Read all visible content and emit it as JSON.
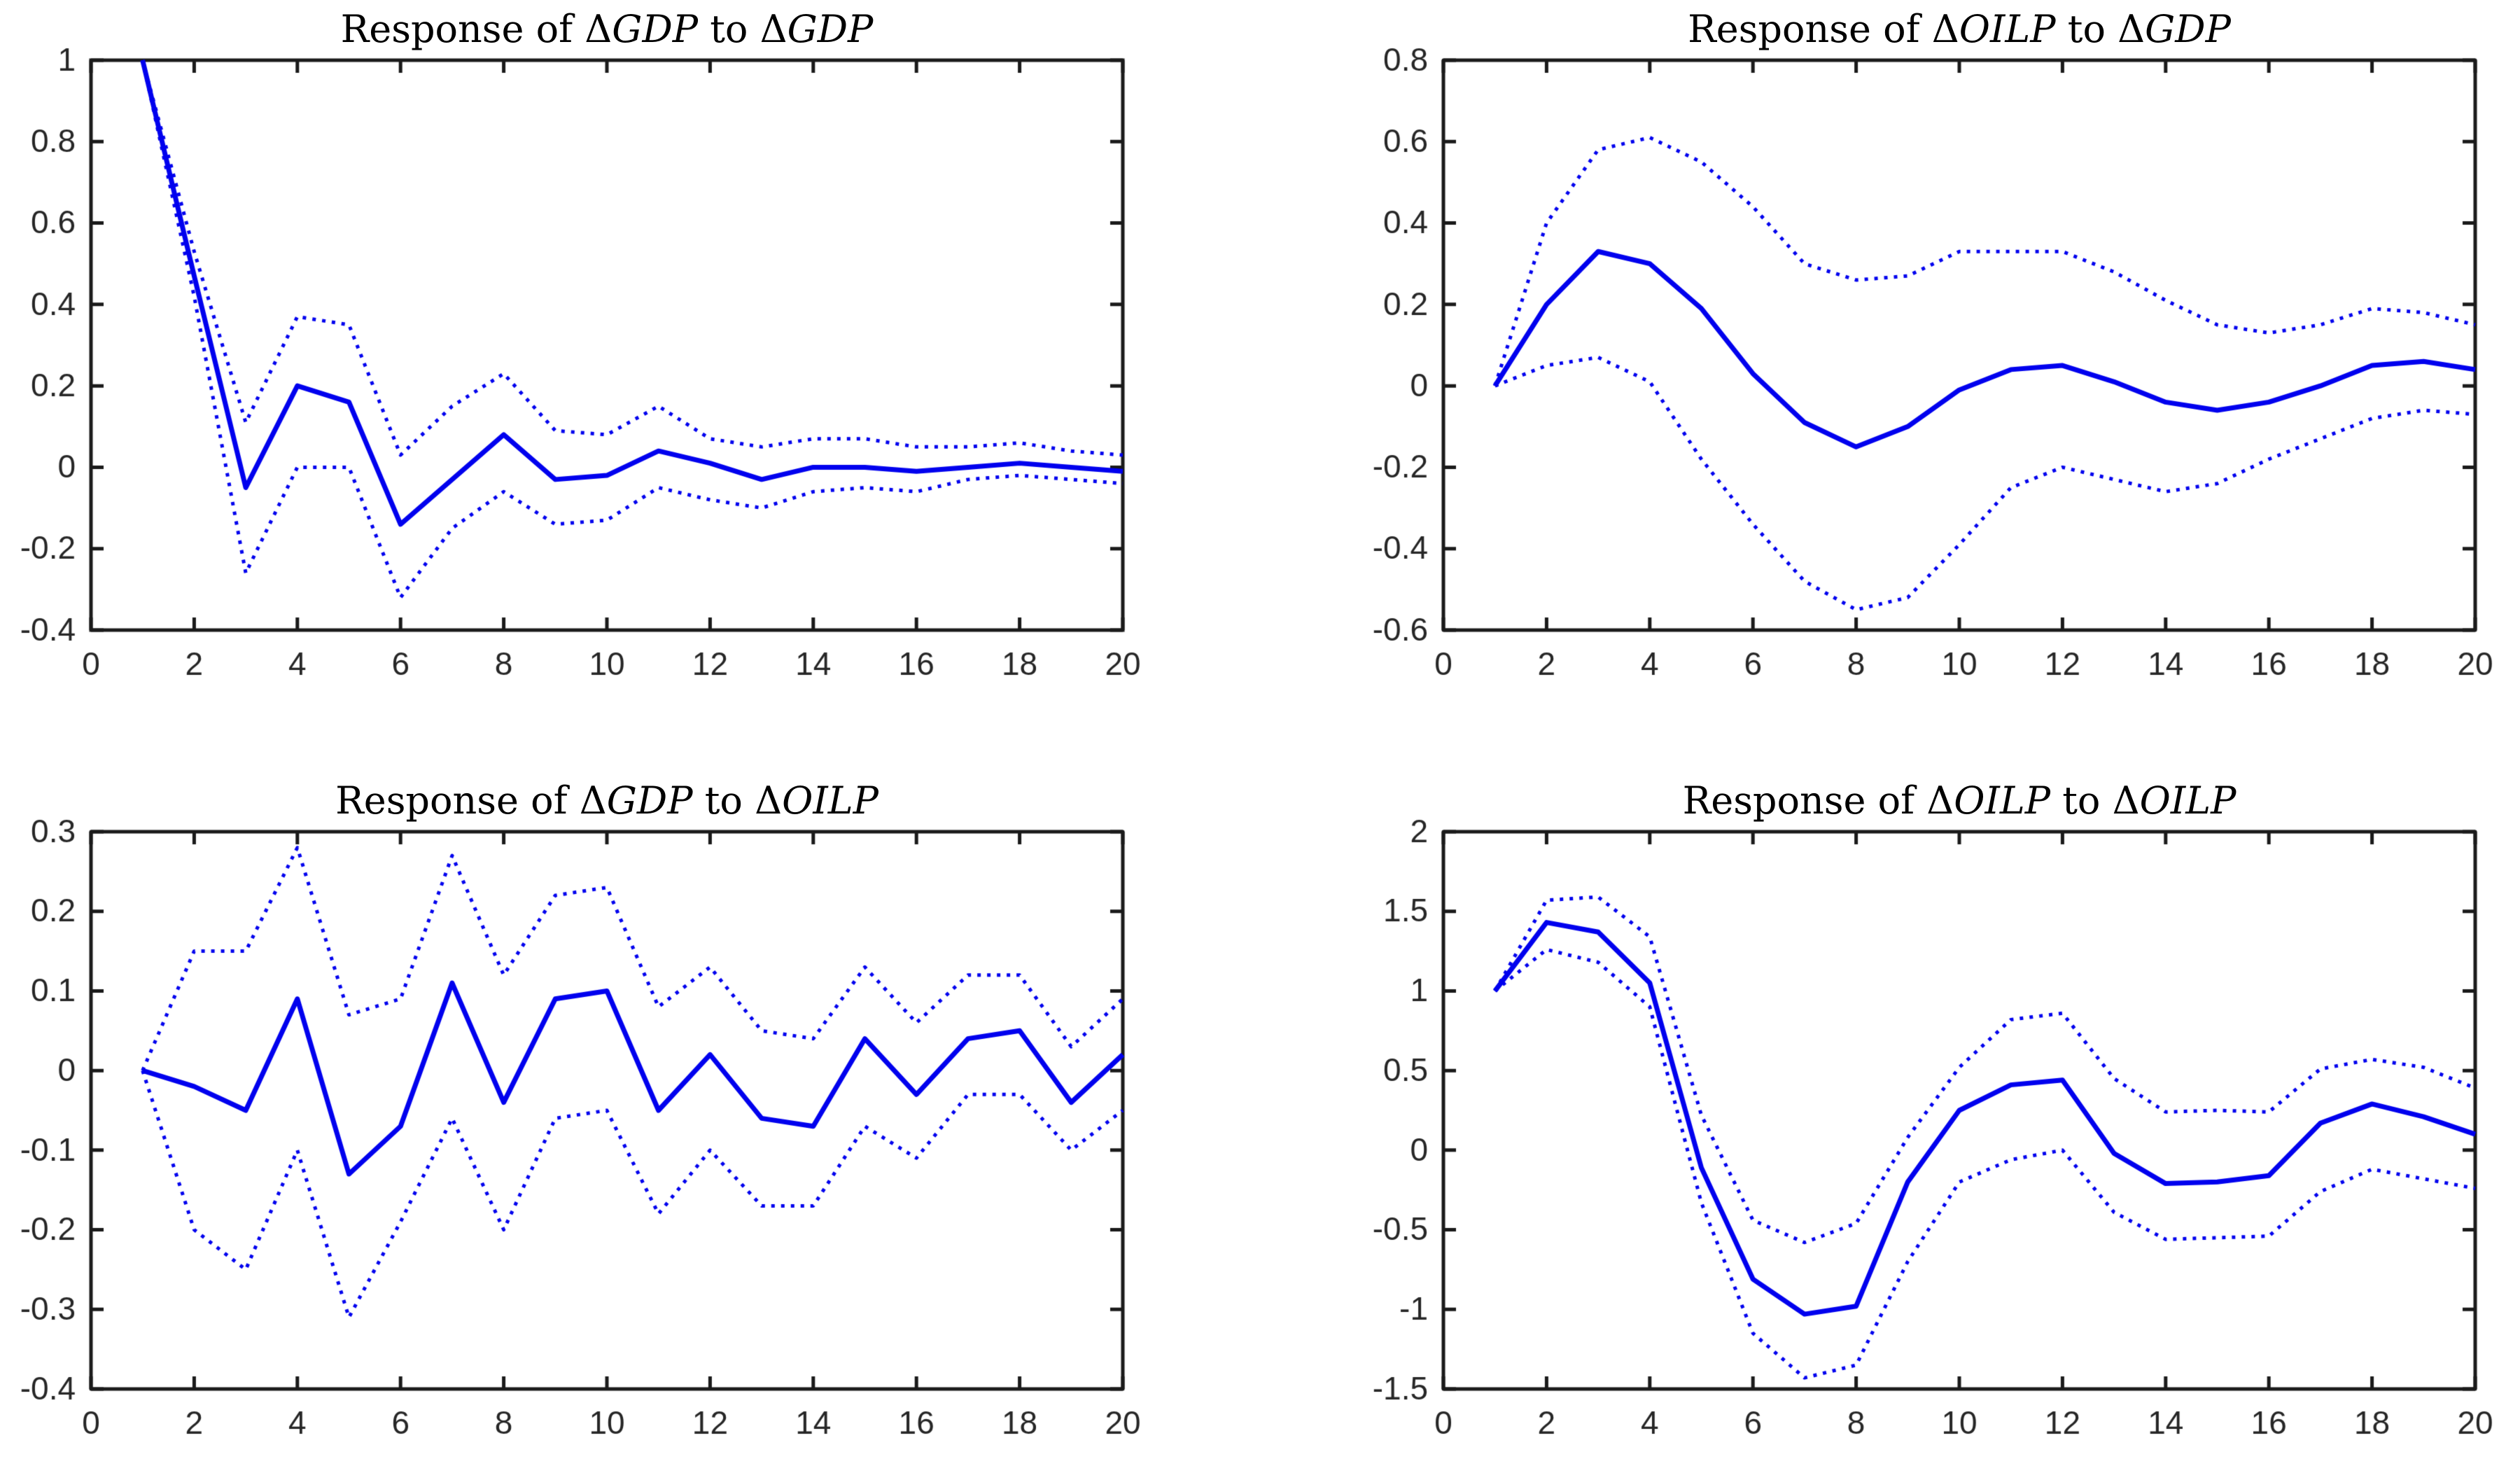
{
  "figure": {
    "background": "#ffffff",
    "line_color": "#0000ee",
    "axis_color": "#1a1a1a",
    "tick_label_color": "#262626",
    "title_color": "#000000"
  },
  "chart_data": [
    {
      "id": "response-gdp-to-gdp",
      "type": "line",
      "title": "Response of ΔGDP to ΔGDP",
      "title_segments": [
        {
          "text": "Response of ",
          "italic": false
        },
        {
          "text": "Δ",
          "italic": false
        },
        {
          "text": "GDP",
          "italic": true
        },
        {
          "text": " to ",
          "italic": false
        },
        {
          "text": "Δ",
          "italic": false
        },
        {
          "text": "GDP",
          "italic": true
        }
      ],
      "xlabel": "",
      "ylabel": "",
      "grid": false,
      "legend": null,
      "xlim": [
        0,
        20
      ],
      "ylim": [
        -0.4,
        1
      ],
      "xticks": [
        0,
        2,
        4,
        6,
        8,
        10,
        12,
        14,
        16,
        18,
        20
      ],
      "xtick_labels": [
        "0",
        "2",
        "4",
        "6",
        "8",
        "10",
        "12",
        "14",
        "16",
        "18",
        "20"
      ],
      "yticks": [
        -0.4,
        -0.2,
        0,
        0.2,
        0.4,
        0.6,
        0.8,
        1
      ],
      "ytick_labels": [
        "-0.4",
        "-0.2",
        "0",
        "0.2",
        "0.4",
        "0.6",
        "0.8",
        "1"
      ],
      "x": [
        1,
        2,
        3,
        4,
        5,
        6,
        7,
        8,
        9,
        10,
        11,
        12,
        13,
        14,
        15,
        16,
        17,
        18,
        19,
        20
      ],
      "series": [
        {
          "name": "irf",
          "style": "solid",
          "values": [
            1.0,
            0.47,
            -0.05,
            0.2,
            0.16,
            -0.14,
            -0.03,
            0.08,
            -0.03,
            -0.02,
            0.04,
            0.01,
            -0.03,
            0.0,
            0.0,
            -0.01,
            0.0,
            0.01,
            0.0,
            -0.01
          ]
        },
        {
          "name": "upper-confidence-band",
          "style": "dotted",
          "values": [
            1.0,
            0.53,
            0.11,
            0.37,
            0.35,
            0.03,
            0.15,
            0.23,
            0.09,
            0.08,
            0.15,
            0.07,
            0.05,
            0.07,
            0.07,
            0.05,
            0.05,
            0.06,
            0.04,
            0.03
          ]
        },
        {
          "name": "lower-confidence-band",
          "style": "dotted",
          "values": [
            1.0,
            0.42,
            -0.26,
            0.0,
            0.0,
            -0.32,
            -0.15,
            -0.06,
            -0.14,
            -0.13,
            -0.05,
            -0.08,
            -0.1,
            -0.06,
            -0.05,
            -0.06,
            -0.03,
            -0.02,
            -0.03,
            -0.04
          ]
        }
      ]
    },
    {
      "id": "response-oilp-to-gdp",
      "type": "line",
      "title": "Response of ΔOILP to ΔGDP",
      "title_segments": [
        {
          "text": "Response of ",
          "italic": false
        },
        {
          "text": "Δ",
          "italic": false
        },
        {
          "text": "OILP",
          "italic": true
        },
        {
          "text": " to ",
          "italic": false
        },
        {
          "text": "Δ",
          "italic": false
        },
        {
          "text": "GDP",
          "italic": true
        }
      ],
      "xlabel": "",
      "ylabel": "",
      "grid": false,
      "legend": null,
      "xlim": [
        0,
        20
      ],
      "ylim": [
        -0.6,
        0.8
      ],
      "xticks": [
        0,
        2,
        4,
        6,
        8,
        10,
        12,
        14,
        16,
        18,
        20
      ],
      "xtick_labels": [
        "0",
        "2",
        "4",
        "6",
        "8",
        "10",
        "12",
        "14",
        "16",
        "18",
        "20"
      ],
      "yticks": [
        -0.6,
        -0.4,
        -0.2,
        0,
        0.2,
        0.4,
        0.6,
        0.8
      ],
      "ytick_labels": [
        "-0.6",
        "-0.4",
        "-0.2",
        "0",
        "0.2",
        "0.4",
        "0.6",
        "0.8"
      ],
      "x": [
        1,
        2,
        3,
        4,
        5,
        6,
        7,
        8,
        9,
        10,
        11,
        12,
        13,
        14,
        15,
        16,
        17,
        18,
        19,
        20
      ],
      "series": [
        {
          "name": "irf",
          "style": "solid",
          "values": [
            0.0,
            0.2,
            0.33,
            0.3,
            0.19,
            0.03,
            -0.09,
            -0.15,
            -0.1,
            -0.01,
            0.04,
            0.05,
            0.01,
            -0.04,
            -0.06,
            -0.04,
            0.0,
            0.05,
            0.06,
            0.04
          ]
        },
        {
          "name": "upper-confidence-band",
          "style": "dotted",
          "values": [
            0.0,
            0.4,
            0.58,
            0.61,
            0.55,
            0.44,
            0.3,
            0.26,
            0.27,
            0.33,
            0.33,
            0.33,
            0.28,
            0.21,
            0.15,
            0.13,
            0.15,
            0.19,
            0.18,
            0.15
          ]
        },
        {
          "name": "lower-confidence-band",
          "style": "dotted",
          "values": [
            0.0,
            0.05,
            0.07,
            0.01,
            -0.18,
            -0.34,
            -0.48,
            -0.55,
            -0.52,
            -0.39,
            -0.25,
            -0.2,
            -0.23,
            -0.26,
            -0.24,
            -0.18,
            -0.13,
            -0.08,
            -0.06,
            -0.07
          ]
        }
      ]
    },
    {
      "id": "response-gdp-to-oilp",
      "type": "line",
      "title": "Response of ΔGDP to ΔOILP",
      "title_segments": [
        {
          "text": "Response of ",
          "italic": false
        },
        {
          "text": "Δ",
          "italic": false
        },
        {
          "text": "GDP",
          "italic": true
        },
        {
          "text": " to ",
          "italic": false
        },
        {
          "text": "Δ",
          "italic": false
        },
        {
          "text": "OILP",
          "italic": true
        }
      ],
      "xlabel": "",
      "ylabel": "",
      "grid": false,
      "legend": null,
      "xlim": [
        0,
        20
      ],
      "ylim": [
        -0.4,
        0.3
      ],
      "xticks": [
        0,
        2,
        4,
        6,
        8,
        10,
        12,
        14,
        16,
        18,
        20
      ],
      "xtick_labels": [
        "0",
        "2",
        "4",
        "6",
        "8",
        "10",
        "12",
        "14",
        "16",
        "18",
        "20"
      ],
      "yticks": [
        -0.4,
        -0.3,
        -0.2,
        -0.1,
        0,
        0.1,
        0.2,
        0.3
      ],
      "ytick_labels": [
        "-0.4",
        "-0.3",
        "-0.2",
        "-0.1",
        "0",
        "0.1",
        "0.2",
        "0.3"
      ],
      "x": [
        1,
        2,
        3,
        4,
        5,
        6,
        7,
        8,
        9,
        10,
        11,
        12,
        13,
        14,
        15,
        16,
        17,
        18,
        19,
        20
      ],
      "series": [
        {
          "name": "irf",
          "style": "solid",
          "values": [
            0.0,
            -0.02,
            -0.05,
            0.09,
            -0.13,
            -0.07,
            0.11,
            -0.04,
            0.09,
            0.1,
            -0.05,
            0.02,
            -0.06,
            -0.07,
            0.04,
            -0.03,
            0.04,
            0.05,
            -0.04,
            0.02
          ]
        },
        {
          "name": "upper-confidence-band",
          "style": "dotted",
          "values": [
            0.0,
            0.15,
            0.15,
            0.28,
            0.07,
            0.09,
            0.27,
            0.12,
            0.22,
            0.23,
            0.08,
            0.13,
            0.05,
            0.04,
            0.13,
            0.06,
            0.12,
            0.12,
            0.03,
            0.09
          ]
        },
        {
          "name": "lower-confidence-band",
          "style": "dotted",
          "values": [
            0.0,
            -0.2,
            -0.25,
            -0.1,
            -0.31,
            -0.19,
            -0.06,
            -0.2,
            -0.06,
            -0.05,
            -0.18,
            -0.1,
            -0.17,
            -0.17,
            -0.07,
            -0.11,
            -0.03,
            -0.03,
            -0.1,
            -0.05
          ]
        }
      ]
    },
    {
      "id": "response-oilp-to-oilp",
      "type": "line",
      "title": "Response of ΔOILP to ΔOILP",
      "title_segments": [
        {
          "text": "Response of ",
          "italic": false
        },
        {
          "text": "Δ",
          "italic": false
        },
        {
          "text": "OILP",
          "italic": true
        },
        {
          "text": " to ",
          "italic": false
        },
        {
          "text": "Δ",
          "italic": false
        },
        {
          "text": "OILP",
          "italic": true
        }
      ],
      "xlabel": "",
      "ylabel": "",
      "grid": false,
      "legend": null,
      "xlim": [
        0,
        20
      ],
      "ylim": [
        -1.5,
        2
      ],
      "xticks": [
        0,
        2,
        4,
        6,
        8,
        10,
        12,
        14,
        16,
        18,
        20
      ],
      "xtick_labels": [
        "0",
        "2",
        "4",
        "6",
        "8",
        "10",
        "12",
        "14",
        "16",
        "18",
        "20"
      ],
      "yticks": [
        -1.5,
        -1,
        -0.5,
        0,
        0.5,
        1,
        1.5,
        2
      ],
      "ytick_labels": [
        "-1.5",
        "-1",
        "-0.5",
        "0",
        "0.5",
        "1",
        "1.5",
        "2"
      ],
      "x": [
        1,
        2,
        3,
        4,
        5,
        6,
        7,
        8,
        9,
        10,
        11,
        12,
        13,
        14,
        15,
        16,
        17,
        18,
        19,
        20
      ],
      "series": [
        {
          "name": "irf",
          "style": "solid",
          "values": [
            1.0,
            1.43,
            1.37,
            1.05,
            -0.11,
            -0.81,
            -1.03,
            -0.98,
            -0.2,
            0.25,
            0.41,
            0.44,
            -0.02,
            -0.21,
            -0.2,
            -0.16,
            0.17,
            0.29,
            0.21,
            0.1
          ]
        },
        {
          "name": "upper-confidence-band",
          "style": "dotted",
          "values": [
            1.0,
            1.57,
            1.59,
            1.34,
            0.22,
            -0.44,
            -0.58,
            -0.46,
            0.08,
            0.52,
            0.82,
            0.86,
            0.45,
            0.24,
            0.25,
            0.24,
            0.51,
            0.57,
            0.52,
            0.39
          ]
        },
        {
          "name": "lower-confidence-band",
          "style": "dotted",
          "values": [
            1.0,
            1.26,
            1.18,
            0.9,
            -0.33,
            -1.15,
            -1.43,
            -1.35,
            -0.7,
            -0.2,
            -0.06,
            0.0,
            -0.39,
            -0.56,
            -0.55,
            -0.54,
            -0.26,
            -0.12,
            -0.18,
            -0.24
          ]
        }
      ]
    }
  ]
}
